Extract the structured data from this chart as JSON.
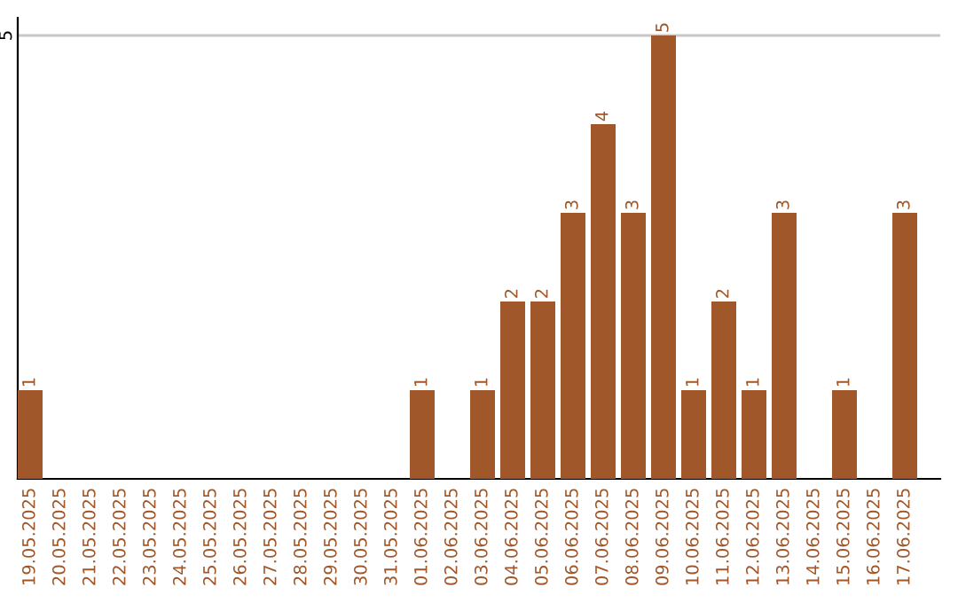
{
  "chart_data": {
    "type": "bar",
    "categories": [
      "19.05.2025",
      "20.05.2025",
      "21.05.2025",
      "22.05.2025",
      "23.05.2025",
      "24.05.2025",
      "25.05.2025",
      "26.05.2025",
      "27.05.2025",
      "28.05.2025",
      "29.05.2025",
      "30.05.2025",
      "31.05.2025",
      "01.06.2025",
      "02.06.2025",
      "03.06.2025",
      "04.06.2025",
      "05.06.2025",
      "06.06.2025",
      "07.06.2025",
      "08.06.2025",
      "09.06.2025",
      "10.06.2025",
      "11.06.2025",
      "12.06.2025",
      "13.06.2025",
      "14.06.2025",
      "15.06.2025",
      "16.06.2025",
      "17.06.2025"
    ],
    "values": [
      1,
      0,
      0,
      0,
      0,
      0,
      0,
      0,
      0,
      0,
      0,
      0,
      0,
      1,
      0,
      1,
      2,
      2,
      3,
      4,
      3,
      5,
      1,
      2,
      1,
      3,
      0,
      1,
      0,
      3
    ],
    "value_labels": [
      "1",
      null,
      null,
      null,
      null,
      null,
      null,
      null,
      null,
      null,
      null,
      null,
      null,
      "1",
      null,
      "1",
      "2",
      "2",
      "3",
      "4",
      "3",
      "5",
      "1",
      "2",
      "1",
      "3",
      null,
      "1",
      null,
      "3"
    ],
    "color": "#a0572a",
    "ylim": [
      0,
      5.2
    ],
    "yticks": [
      5
    ],
    "grid": "y"
  }
}
